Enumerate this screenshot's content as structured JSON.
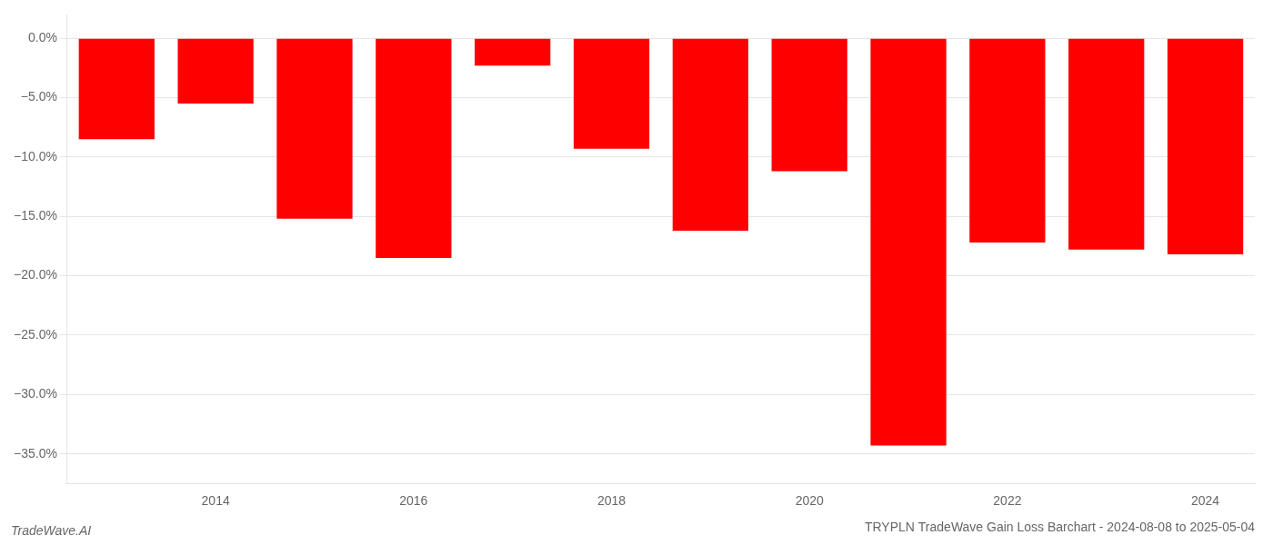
{
  "chart_data": {
    "type": "bar",
    "title": "TRYPLN TradeWave Gain Loss Barchart - 2024-08-08 to 2025-05-04",
    "annotations": [
      "TradeWave.AI"
    ],
    "categories": [
      null,
      "2014",
      null,
      "2016",
      null,
      "2018",
      null,
      "2020",
      null,
      "2022",
      null,
      "2024"
    ],
    "values": [
      -8.5,
      -5.5,
      -15.2,
      -18.5,
      -2.3,
      -9.3,
      -16.2,
      -11.2,
      -34.3,
      -17.2,
      -17.8,
      -18.2
    ],
    "color": "#ff0000",
    "ylim": [
      -37.5,
      2.0
    ],
    "yticks": [
      {
        "value": 0.0,
        "label": "0.0%"
      },
      {
        "value": -5.0,
        "label": "−5.0%"
      },
      {
        "value": -10.0,
        "label": "−10.0%"
      },
      {
        "value": -15.0,
        "label": "−15.0%"
      },
      {
        "value": -20.0,
        "label": "−20.0%"
      },
      {
        "value": -25.0,
        "label": "−25.0%"
      },
      {
        "value": -30.0,
        "label": "−30.0%"
      },
      {
        "value": -35.0,
        "label": "−35.0%"
      }
    ],
    "grid": true
  }
}
